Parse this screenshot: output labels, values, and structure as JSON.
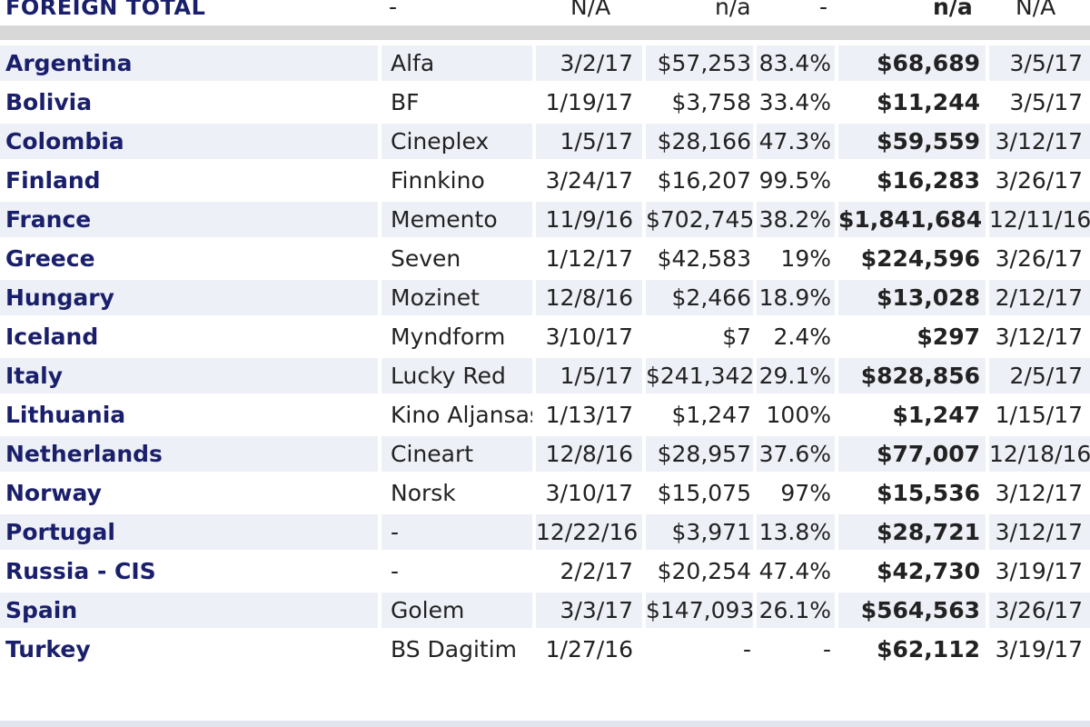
{
  "header": {
    "title": "FOREIGN TOTAL",
    "distributor": "-",
    "release": "N/A",
    "opening": "n/a",
    "pct": "-",
    "total": "n/a",
    "as_of": "N/A"
  },
  "rows": [
    {
      "country": "Argentina",
      "distributor": "Alfa",
      "release": "3/2/17",
      "opening": "$57,253",
      "pct": "83.4%",
      "total": "$68,689",
      "as_of": "3/5/17"
    },
    {
      "country": "Bolivia",
      "distributor": "BF",
      "release": "1/19/17",
      "opening": "$3,758",
      "pct": "33.4%",
      "total": "$11,244",
      "as_of": "3/5/17"
    },
    {
      "country": "Colombia",
      "distributor": "Cineplex",
      "release": "1/5/17",
      "opening": "$28,166",
      "pct": "47.3%",
      "total": "$59,559",
      "as_of": "3/12/17"
    },
    {
      "country": "Finland",
      "distributor": "Finnkino",
      "release": "3/24/17",
      "opening": "$16,207",
      "pct": "99.5%",
      "total": "$16,283",
      "as_of": "3/26/17"
    },
    {
      "country": "France",
      "distributor": "Memento",
      "release": "11/9/16",
      "opening": "$702,745",
      "pct": "38.2%",
      "total": "$1,841,684",
      "as_of": "12/11/16"
    },
    {
      "country": "Greece",
      "distributor": "Seven",
      "release": "1/12/17",
      "opening": "$42,583",
      "pct": "19%",
      "total": "$224,596",
      "as_of": "3/26/17"
    },
    {
      "country": "Hungary",
      "distributor": "Mozinet",
      "release": "12/8/16",
      "opening": "$2,466",
      "pct": "18.9%",
      "total": "$13,028",
      "as_of": "2/12/17"
    },
    {
      "country": "Iceland",
      "distributor": "Myndform",
      "release": "3/10/17",
      "opening": "$7",
      "pct": "2.4%",
      "total": "$297",
      "as_of": "3/12/17"
    },
    {
      "country": "Italy",
      "distributor": "Lucky Red",
      "release": "1/5/17",
      "opening": "$241,342",
      "pct": "29.1%",
      "total": "$828,856",
      "as_of": "2/5/17"
    },
    {
      "country": "Lithuania",
      "distributor": "Kino Aljansas",
      "release": "1/13/17",
      "opening": "$1,247",
      "pct": "100%",
      "total": "$1,247",
      "as_of": "1/15/17"
    },
    {
      "country": "Netherlands",
      "distributor": "Cineart",
      "release": "12/8/16",
      "opening": "$28,957",
      "pct": "37.6%",
      "total": "$77,007",
      "as_of": "12/18/16"
    },
    {
      "country": "Norway",
      "distributor": "Norsk",
      "release": "3/10/17",
      "opening": "$15,075",
      "pct": "97%",
      "total": "$15,536",
      "as_of": "3/12/17"
    },
    {
      "country": "Portugal",
      "distributor": "-",
      "release": "12/22/16",
      "opening": "$3,971",
      "pct": "13.8%",
      "total": "$28,721",
      "as_of": "3/12/17"
    },
    {
      "country": "Russia - CIS",
      "distributor": "-",
      "release": "2/2/17",
      "opening": "$20,254",
      "pct": "47.4%",
      "total": "$42,730",
      "as_of": "3/19/17"
    },
    {
      "country": "Spain",
      "distributor": "Golem",
      "release": "3/3/17",
      "opening": "$147,093",
      "pct": "26.1%",
      "total": "$564,563",
      "as_of": "3/26/17"
    },
    {
      "country": "Turkey",
      "distributor": "BS Dagitim",
      "release": "1/27/16",
      "opening": "-",
      "pct": "-",
      "total": "$62,112",
      "as_of": "3/19/17"
    }
  ],
  "colors": {
    "country_text": "#1a1f6b",
    "row_shade": "#eef0f7",
    "separator": "#d8d8d8"
  }
}
